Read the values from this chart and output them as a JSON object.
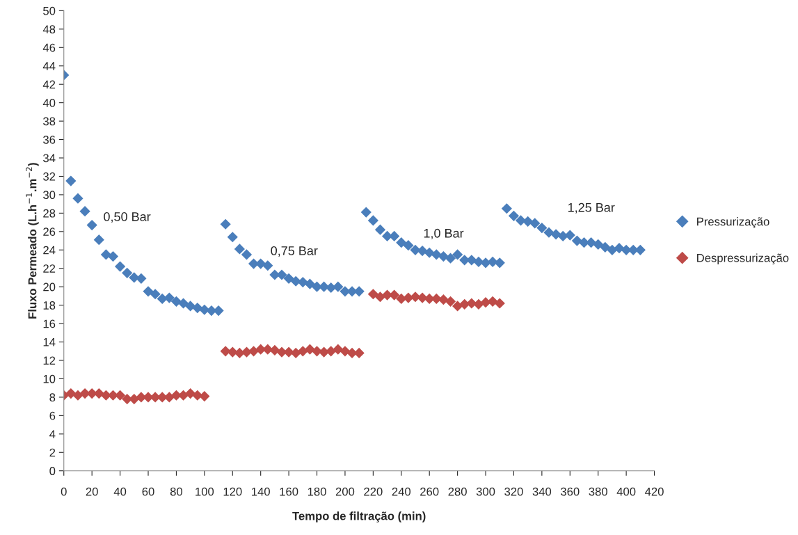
{
  "chart_data": {
    "type": "scatter",
    "xlabel": "Tempo de filtração (min)",
    "ylabel": "Fluxo Permeado (L.h$^{−1}$.m$^{−2}$)",
    "xlim": [
      0,
      420
    ],
    "xticks": [
      0,
      20,
      40,
      60,
      80,
      100,
      120,
      140,
      160,
      180,
      200,
      220,
      240,
      260,
      280,
      300,
      320,
      340,
      360,
      380,
      400,
      420
    ],
    "ylim": [
      0,
      50
    ],
    "yticks": [
      0,
      2,
      4,
      6,
      8,
      10,
      12,
      14,
      16,
      18,
      20,
      22,
      24,
      26,
      28,
      30,
      32,
      34,
      36,
      38,
      40,
      42,
      44,
      46,
      48,
      50
    ],
    "grid": false,
    "legend": "right",
    "marker": "diamond",
    "series": [
      {
        "name": "Pressurização",
        "color": "#4a7ebb",
        "x": [
          0,
          5,
          10,
          15,
          20,
          25,
          30,
          35,
          40,
          45,
          50,
          55,
          60,
          65,
          70,
          75,
          80,
          85,
          90,
          95,
          100,
          105,
          110,
          115,
          120,
          125,
          130,
          135,
          140,
          145,
          150,
          155,
          160,
          165,
          170,
          175,
          180,
          185,
          190,
          195,
          200,
          205,
          210,
          215,
          220,
          225,
          230,
          235,
          240,
          245,
          250,
          255,
          260,
          265,
          270,
          275,
          280,
          285,
          290,
          295,
          300,
          305,
          310,
          315,
          320,
          325,
          330,
          335,
          340,
          345,
          350,
          355,
          360,
          365,
          370,
          375,
          380,
          385,
          390,
          395,
          400,
          405,
          410
        ],
        "values": [
          43.0,
          31.5,
          29.6,
          28.2,
          26.7,
          25.1,
          23.5,
          23.3,
          22.2,
          21.5,
          21.0,
          20.9,
          19.5,
          19.2,
          18.7,
          18.8,
          18.4,
          18.2,
          17.9,
          17.7,
          17.5,
          17.4,
          17.4,
          26.8,
          25.4,
          24.1,
          23.5,
          22.5,
          22.5,
          22.3,
          21.3,
          21.3,
          20.9,
          20.6,
          20.5,
          20.3,
          20.0,
          20.0,
          19.9,
          20.0,
          19.5,
          19.5,
          19.5,
          28.1,
          27.2,
          26.2,
          25.5,
          25.5,
          24.8,
          24.5,
          24.0,
          23.9,
          23.7,
          23.5,
          23.3,
          23.1,
          23.5,
          22.9,
          22.9,
          22.7,
          22.6,
          22.7,
          22.6,
          28.5,
          27.7,
          27.2,
          27.1,
          26.9,
          26.4,
          25.9,
          25.7,
          25.5,
          25.6,
          25.0,
          24.8,
          24.8,
          24.6,
          24.3,
          24.0,
          24.2,
          24.0,
          24.0,
          24.0
        ]
      },
      {
        "name": "Despressurização",
        "color": "#be4b48",
        "x": [
          0,
          5,
          10,
          15,
          20,
          25,
          30,
          35,
          40,
          45,
          50,
          55,
          60,
          65,
          70,
          75,
          80,
          85,
          90,
          95,
          100,
          115,
          120,
          125,
          130,
          135,
          140,
          145,
          150,
          155,
          160,
          165,
          170,
          175,
          180,
          185,
          190,
          195,
          200,
          205,
          210,
          220,
          225,
          230,
          235,
          240,
          245,
          250,
          255,
          260,
          265,
          270,
          275,
          280,
          285,
          290,
          295,
          300,
          305,
          310
        ],
        "values": [
          8.2,
          8.4,
          8.2,
          8.4,
          8.4,
          8.4,
          8.2,
          8.2,
          8.2,
          7.8,
          7.8,
          8.0,
          8.0,
          8.0,
          8.0,
          8.0,
          8.2,
          8.2,
          8.4,
          8.2,
          8.1,
          13.0,
          12.9,
          12.8,
          12.9,
          13.0,
          13.2,
          13.2,
          13.1,
          12.9,
          12.9,
          12.8,
          13.0,
          13.2,
          13.0,
          12.9,
          13.0,
          13.2,
          13.0,
          12.8,
          12.8,
          19.2,
          18.9,
          19.1,
          19.1,
          18.7,
          18.8,
          18.9,
          18.8,
          18.7,
          18.7,
          18.6,
          18.4,
          17.9,
          18.1,
          18.2,
          18.1,
          18.3,
          18.4,
          18.2
        ]
      }
    ],
    "annotations": [
      "0,50 Bar",
      "0,75 Bar",
      "1,0 Bar",
      "1,25 Bar"
    ]
  }
}
